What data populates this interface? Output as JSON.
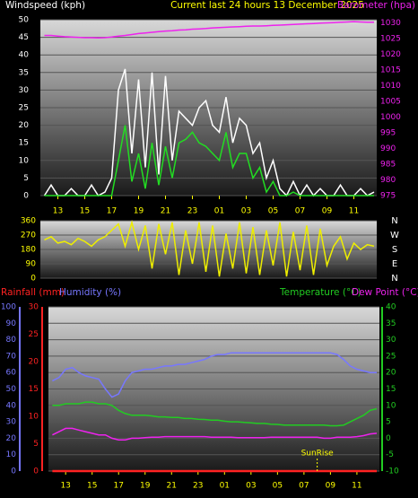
{
  "chart_data": [
    {
      "type": "line",
      "title": "Current last 24 hours 13 December 2025",
      "ylabel": "Windspeed (kph)",
      "y2label": "Barometer (hpa)",
      "x": [
        12,
        12.5,
        13,
        13.5,
        14,
        14.5,
        15,
        15.5,
        16,
        16.5,
        17,
        17.5,
        18,
        18.5,
        19,
        19.5,
        20,
        20.5,
        21,
        21.5,
        22,
        22.5,
        23,
        23.5,
        24,
        24.5,
        25,
        25.5,
        26,
        26.5,
        27,
        27.5,
        28,
        28.5,
        29,
        29.5,
        30,
        30.5,
        31,
        31.5,
        32,
        32.5,
        33,
        33.5,
        34,
        34.5,
        35,
        35.5,
        36,
        36.5
      ],
      "xlim": [
        11.7,
        36.7
      ],
      "xticks": [
        13,
        15,
        17,
        19,
        21,
        23,
        {
          "value": 25,
          "label": "01"
        },
        {
          "value": 27,
          "label": "03"
        },
        {
          "value": 29,
          "label": "05"
        },
        {
          "value": 31,
          "label": "07"
        },
        {
          "value": 33,
          "label": "09"
        },
        {
          "value": 35,
          "label": "11"
        }
      ],
      "ylim": [
        0,
        50
      ],
      "yticks": [
        0,
        5,
        10,
        15,
        20,
        25,
        30,
        35,
        40,
        45,
        50
      ],
      "y2lim": [
        975,
        1031
      ],
      "y2ticks": [
        975,
        980,
        985,
        990,
        995,
        1000,
        1005,
        1010,
        1015,
        1020,
        1025,
        1030
      ],
      "grid": true,
      "series": [
        {
          "color": "#ffffff",
          "values": [
            0,
            3,
            0,
            0,
            2,
            0,
            0,
            3,
            0,
            1,
            5,
            30,
            36,
            12,
            33,
            8,
            35,
            6,
            34,
            10,
            24,
            22,
            20,
            25,
            27,
            20,
            18,
            28,
            15,
            22,
            20,
            12,
            15,
            5,
            10,
            2,
            0,
            4,
            0,
            3,
            0,
            2,
            0,
            0,
            3,
            0,
            0,
            2,
            0,
            1
          ]
        },
        {
          "color": "#22dd22",
          "values": [
            0,
            0,
            0,
            0,
            0,
            0,
            0,
            0,
            0,
            0,
            0,
            10,
            20,
            4,
            12,
            2,
            15,
            3,
            14,
            5,
            15,
            16,
            18,
            15,
            14,
            12,
            10,
            18,
            8,
            12,
            12,
            5,
            8,
            1,
            4,
            0,
            0,
            1,
            0,
            0,
            0,
            0,
            0,
            0,
            0,
            0,
            0,
            0,
            0,
            0
          ]
        },
        {
          "color": "#ee22ee",
          "axis": "y2",
          "values": [
            1026,
            1026,
            1025.8,
            1025.6,
            1025.5,
            1025.4,
            1025.3,
            1025.3,
            1025.2,
            1025.3,
            1025.5,
            1025.8,
            1026,
            1026.3,
            1026.6,
            1026.8,
            1027,
            1027.2,
            1027.4,
            1027.5,
            1027.7,
            1027.8,
            1028,
            1028.1,
            1028.2,
            1028.4,
            1028.5,
            1028.6,
            1028.7,
            1028.8,
            1028.9,
            1029,
            1029,
            1029.1,
            1029.2,
            1029.3,
            1029.4,
            1029.5,
            1029.6,
            1029.7,
            1029.8,
            1029.9,
            1030,
            1030.1,
            1030.2,
            1030.3,
            1030.4,
            1030.3,
            1030.2,
            1030.2
          ]
        }
      ]
    },
    {
      "type": "line",
      "x": [
        12,
        12.5,
        13,
        13.5,
        14,
        14.5,
        15,
        15.5,
        16,
        16.5,
        17,
        17.5,
        18,
        18.5,
        19,
        19.5,
        20,
        20.5,
        21,
        21.5,
        22,
        22.5,
        23,
        23.5,
        24,
        24.5,
        25,
        25.5,
        26,
        26.5,
        27,
        27.5,
        28,
        28.5,
        29,
        29.5,
        30,
        30.5,
        31,
        31.5,
        32,
        32.5,
        33,
        33.5,
        34,
        34.5,
        35,
        35.5,
        36,
        36.5
      ],
      "xlim": [
        11.7,
        36.7
      ],
      "ylim": [
        0,
        360
      ],
      "yticks": [
        0,
        90,
        180,
        270,
        360
      ],
      "y2lim": [
        0,
        360
      ],
      "y2ticks": [
        {
          "value": 360,
          "label": "N"
        },
        {
          "value": 270,
          "label": "W"
        },
        {
          "value": 180,
          "label": "S"
        },
        {
          "value": 90,
          "label": "E"
        },
        {
          "value": 0,
          "label": "N"
        }
      ],
      "grid": true,
      "series": [
        {
          "color": "#eeee00",
          "values": [
            240,
            260,
            220,
            230,
            210,
            250,
            230,
            200,
            240,
            260,
            300,
            340,
            200,
            350,
            180,
            330,
            60,
            340,
            150,
            350,
            20,
            300,
            90,
            350,
            40,
            330,
            10,
            280,
            60,
            350,
            30,
            320,
            20,
            300,
            80,
            350,
            10,
            290,
            50,
            330,
            20,
            310,
            80,
            200,
            260,
            120,
            220,
            180,
            210,
            200
          ]
        }
      ]
    },
    {
      "type": "line",
      "x": [
        12,
        12.5,
        13,
        13.5,
        14,
        14.5,
        15,
        15.5,
        16,
        16.5,
        17,
        17.5,
        18,
        18.5,
        19,
        19.5,
        20,
        20.5,
        21,
        21.5,
        22,
        22.5,
        23,
        23.5,
        24,
        24.5,
        25,
        25.5,
        26,
        26.5,
        27,
        27.5,
        28,
        28.5,
        29,
        29.5,
        30,
        30.5,
        31,
        31.5,
        32,
        32.5,
        33,
        33.5,
        34,
        34.5,
        35,
        35.5,
        36,
        36.5
      ],
      "xlim": [
        11.7,
        36.7
      ],
      "xticks": [
        13,
        15,
        17,
        19,
        21,
        23,
        {
          "value": 25,
          "label": "01"
        },
        {
          "value": 27,
          "label": "03"
        },
        {
          "value": 29,
          "label": "05"
        },
        {
          "value": 31,
          "label": "07"
        },
        {
          "value": 33,
          "label": "09"
        },
        {
          "value": 35,
          "label": "11"
        }
      ],
      "ylim": [
        0,
        100
      ],
      "yticks": [
        0,
        10,
        20,
        30,
        40,
        50,
        60,
        70,
        80,
        90,
        100
      ],
      "y3lim": [
        0,
        30
      ],
      "y3ticks": [
        0,
        5,
        10,
        15,
        20,
        25,
        30
      ],
      "y2lim": [
        -10,
        40
      ],
      "y2ticks": [
        -10,
        -5,
        0,
        5,
        10,
        15,
        20,
        25,
        30,
        35,
        40
      ],
      "grid": true,
      "annotation": {
        "text": "SunRise",
        "x": 32
      },
      "series": [
        {
          "name": "Rainfall (mm)",
          "color": "#ff2222",
          "axis": "y3",
          "values": [
            0,
            0,
            0,
            0,
            0,
            0,
            0,
            0,
            0,
            0,
            0,
            0,
            0,
            0,
            0,
            0,
            0,
            0,
            0,
            0,
            0,
            0,
            0,
            0,
            0,
            0,
            0,
            0,
            0,
            0,
            0,
            0,
            0,
            0,
            0,
            0,
            0,
            0,
            0,
            0,
            0,
            0,
            0,
            0,
            0,
            0,
            0,
            0,
            0,
            0
          ]
        },
        {
          "name": "Humidity (%)",
          "color": "#7777ff",
          "values": [
            55,
            57,
            62,
            63,
            60,
            58,
            57,
            56,
            50,
            45,
            47,
            55,
            60,
            61,
            62,
            62,
            63,
            64,
            64,
            65,
            65,
            66,
            67,
            68,
            70,
            71,
            71,
            72,
            72,
            72,
            72,
            72,
            72,
            72,
            72,
            72,
            72,
            72,
            72,
            72,
            72,
            72,
            72,
            71,
            68,
            64,
            62,
            61,
            60,
            60
          ]
        },
        {
          "name": "Temperature (°C)",
          "color": "#22cc22",
          "axis": "y2",
          "values": [
            10,
            10,
            10.5,
            10.5,
            10.5,
            11,
            11,
            10.5,
            10.5,
            10,
            8.5,
            7.5,
            7,
            7,
            7,
            6.8,
            6.5,
            6.5,
            6.3,
            6.3,
            6,
            6,
            5.8,
            5.7,
            5.5,
            5.5,
            5.2,
            5,
            5,
            4.8,
            4.7,
            4.5,
            4.5,
            4.3,
            4.2,
            4,
            4,
            4,
            4,
            4,
            4,
            4,
            3.8,
            3.8,
            4,
            5,
            6,
            7,
            8.5,
            9
          ]
        },
        {
          "name": "Dew Point (°C)",
          "color": "#ee22ee",
          "axis": "y2",
          "values": [
            1,
            2,
            3,
            3,
            2.5,
            2,
            1.5,
            1,
            1,
            0,
            -0.5,
            -0.5,
            0,
            0,
            0.2,
            0.3,
            0.3,
            0.5,
            0.5,
            0.5,
            0.5,
            0.5,
            0.5,
            0.5,
            0.3,
            0.3,
            0.3,
            0.3,
            0.2,
            0.2,
            0.2,
            0.2,
            0.2,
            0.3,
            0.3,
            0.3,
            0.3,
            0.3,
            0.3,
            0.3,
            0.3,
            0,
            0,
            0.3,
            0.3,
            0.3,
            0.5,
            0.8,
            1.3,
            1.5
          ]
        }
      ]
    }
  ]
}
